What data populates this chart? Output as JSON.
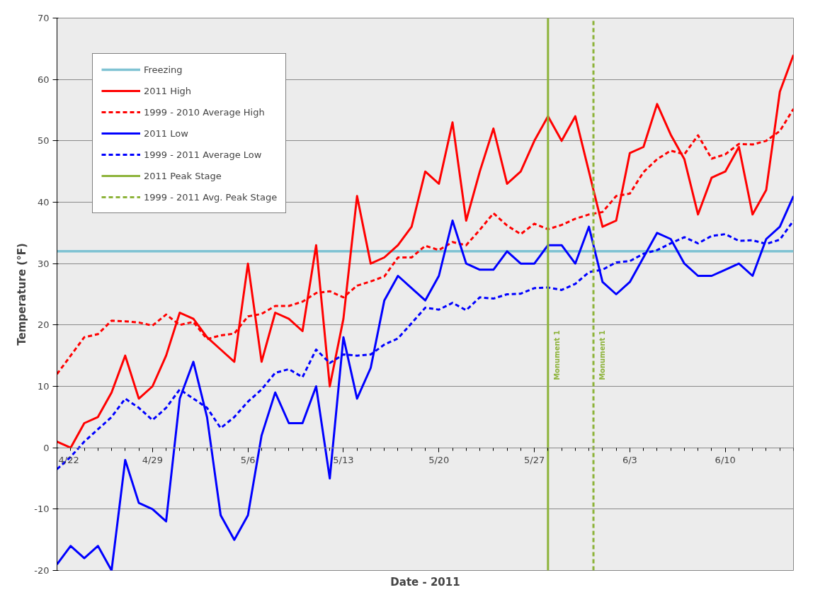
{
  "chart_data": {
    "type": "line",
    "xlabel": "Date - 2011",
    "ylabel": "Temperature (°F)",
    "x": [
      "2011-04-22",
      "2011-04-23",
      "2011-04-24",
      "2011-04-25",
      "2011-04-26",
      "2011-04-27",
      "2011-04-28",
      "2011-04-29",
      "2011-04-30",
      "2011-05-01",
      "2011-05-02",
      "2011-05-03",
      "2011-05-04",
      "2011-05-05",
      "2011-05-06",
      "2011-05-07",
      "2011-05-08",
      "2011-05-09",
      "2011-05-10",
      "2011-05-11",
      "2011-05-12",
      "2011-05-13",
      "2011-05-14",
      "2011-05-15",
      "2011-05-16",
      "2011-05-17",
      "2011-05-18",
      "2011-05-19",
      "2011-05-20",
      "2011-05-21",
      "2011-05-22",
      "2011-05-23",
      "2011-05-24",
      "2011-05-25",
      "2011-05-26",
      "2011-05-27",
      "2011-05-28",
      "2011-05-29",
      "2011-05-30",
      "2011-05-31",
      "2011-06-01",
      "2011-06-02",
      "2011-06-03",
      "2011-06-04",
      "2011-06-05",
      "2011-06-06",
      "2011-06-07",
      "2011-06-08",
      "2011-06-09",
      "2011-06-10",
      "2011-06-11",
      "2011-06-12",
      "2011-06-13",
      "2011-06-14",
      "2011-06-15"
    ],
    "series": [
      {
        "name": "2011 High",
        "color": "#ff0000",
        "line_style": "solid",
        "values": [
          1,
          0,
          4,
          5,
          9,
          15,
          8,
          10,
          15,
          22,
          21,
          18,
          16,
          14,
          30,
          14,
          22,
          21,
          19,
          33,
          10,
          21,
          41,
          30,
          31,
          33,
          36,
          45,
          43,
          53,
          37,
          45,
          52,
          43,
          45,
          50,
          54,
          50,
          54,
          45,
          36,
          37,
          48,
          49,
          56,
          51,
          47,
          38,
          44,
          45,
          49,
          38,
          42,
          58,
          64
        ]
      },
      {
        "name": "1999 - 2010 Average High",
        "color": "#ff0000",
        "line_style": "dashed",
        "values": [
          12,
          15,
          18,
          18.5,
          20.7,
          20.6,
          20.4,
          19.9,
          21.7,
          20,
          20.5,
          17.7,
          18.3,
          18.6,
          21.4,
          21.8,
          23.1,
          23.1,
          23.8,
          25.2,
          25.5,
          24.5,
          26.4,
          27.1,
          27.9,
          31,
          31,
          32.9,
          32.2,
          33.5,
          33,
          35.5,
          38.2,
          36.2,
          34.8,
          36.5,
          35.6,
          36.3,
          37.3,
          38,
          38.4,
          41,
          41.4,
          44.9,
          47,
          48.4,
          47.8,
          50.9,
          47.1,
          47.8,
          49.5,
          49.4,
          50,
          51.6,
          55.2
        ]
      },
      {
        "name": "2011 Low",
        "color": "#0000ff",
        "line_style": "solid",
        "values": [
          -19,
          -16,
          -18,
          -16,
          -20,
          -2,
          -9,
          -10,
          -12,
          8,
          14,
          5,
          -11,
          -15,
          -11,
          2,
          9,
          4,
          4,
          10,
          -5,
          18,
          8,
          13,
          24,
          28,
          26,
          24,
          28,
          37,
          30,
          29,
          29,
          32,
          30,
          30,
          33,
          33,
          30,
          36,
          27,
          25,
          27,
          31,
          35,
          34,
          30,
          28,
          28,
          29,
          30,
          28,
          34,
          36,
          41
        ]
      },
      {
        "name": "1999 - 2011 Average Low",
        "color": "#0000ff",
        "line_style": "dashed",
        "values": [
          -3.5,
          -1.5,
          1,
          3,
          5,
          8,
          6.5,
          4.5,
          6.5,
          9.5,
          8,
          6.5,
          3.2,
          5,
          7.5,
          9.5,
          12.2,
          12.8,
          11.5,
          16,
          13.8,
          15.2,
          15,
          15.2,
          16.8,
          17.8,
          20.3,
          22.8,
          22.5,
          23.6,
          22.4,
          24.5,
          24.3,
          25,
          25.1,
          26,
          26.1,
          25.7,
          26.7,
          28.6,
          29,
          30.2,
          30.4,
          31.6,
          32.2,
          33.3,
          34.3,
          33.3,
          34.5,
          34.8,
          33.7,
          33.8,
          33.2,
          33.9,
          37
        ]
      },
      {
        "name": "2011 Peak Stage",
        "color": "#8db33a",
        "line_style": "solid",
        "x": [
          "2011-05-28",
          "2011-05-28"
        ],
        "values": [
          -20,
          70
        ]
      },
      {
        "name": "1999 - 2011 Avg. Peak Stage",
        "color": "#8db33a",
        "line_style": "dashed",
        "x": [
          "2011-05-31T08:00",
          "2011-05-31T08:00"
        ],
        "values": [
          -20,
          70
        ]
      }
    ],
    "ref_lines": [
      {
        "axis": "y",
        "value": 32,
        "label": "Freezing",
        "color": "#7fc3d3"
      }
    ],
    "annotations": [
      {
        "text": "Monument 1",
        "x": "2011-05-28",
        "y": 11
      },
      {
        "text": "Monument 1",
        "x": "2011-05-31T08:00",
        "y": 11
      }
    ],
    "xlim": [
      "2011-04-22",
      "2011-06-15"
    ],
    "xticks": [
      {
        "value": "2011-04-22",
        "label": "4/22"
      },
      {
        "value": "2011-04-29",
        "label": "4/29"
      },
      {
        "value": "2011-05-06",
        "label": "5/6"
      },
      {
        "value": "2011-05-13",
        "label": "5/13"
      },
      {
        "value": "2011-05-20",
        "label": "5/20"
      },
      {
        "value": "2011-05-27",
        "label": "5/27"
      },
      {
        "value": "2011-06-03",
        "label": "6/3"
      },
      {
        "value": "2011-06-10",
        "label": "6/10"
      }
    ],
    "ylim": [
      -20,
      70
    ],
    "yticks": [
      -20,
      -10,
      0,
      10,
      20,
      30,
      40,
      50,
      60,
      70
    ],
    "grid": "y",
    "legend": "top left"
  }
}
